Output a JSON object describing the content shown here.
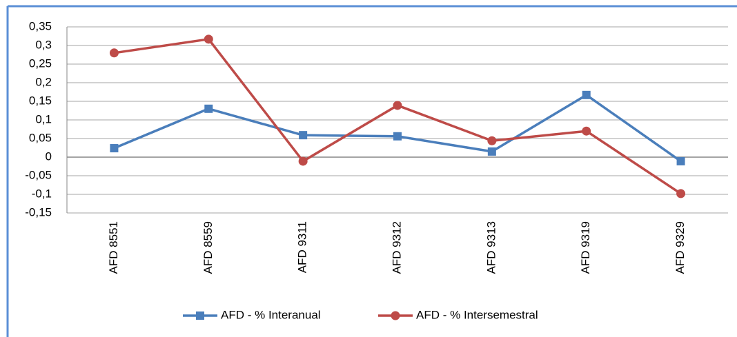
{
  "chart_data": {
    "type": "line",
    "categories": [
      "AFD 8551",
      "AFD 8559",
      "AFD 9311",
      "AFD 9312",
      "AFD 9313",
      "AFD 9319",
      "AFD 9329"
    ],
    "series": [
      {
        "name": "AFD - % Interanual",
        "color": "#4a7ebb",
        "marker": "square",
        "values": [
          0.024,
          0.13,
          0.059,
          0.056,
          0.015,
          0.167,
          -0.011
        ]
      },
      {
        "name": "AFD - % Intersemestral",
        "color": "#be4b48",
        "marker": "circle",
        "values": [
          0.28,
          0.317,
          -0.011,
          0.139,
          0.044,
          0.07,
          -0.098
        ]
      }
    ],
    "ylim": [
      -0.15,
      0.35
    ],
    "yticks": [
      {
        "value": -0.15,
        "label": "-0,15"
      },
      {
        "value": -0.1,
        "label": "-0,1"
      },
      {
        "value": -0.05,
        "label": "-0,05"
      },
      0,
      {
        "value": 0.05,
        "label": "0,05"
      },
      {
        "value": 0.1,
        "label": "0,1"
      },
      {
        "value": 0.15,
        "label": "0,15"
      },
      {
        "value": 0.2,
        "label": "0,2"
      },
      {
        "value": 0.25,
        "label": "0,25"
      },
      {
        "value": 0.3,
        "label": "0,3"
      },
      {
        "value": 0.35,
        "label": "0,35"
      }
    ],
    "grid": true,
    "legend": "bottom"
  }
}
